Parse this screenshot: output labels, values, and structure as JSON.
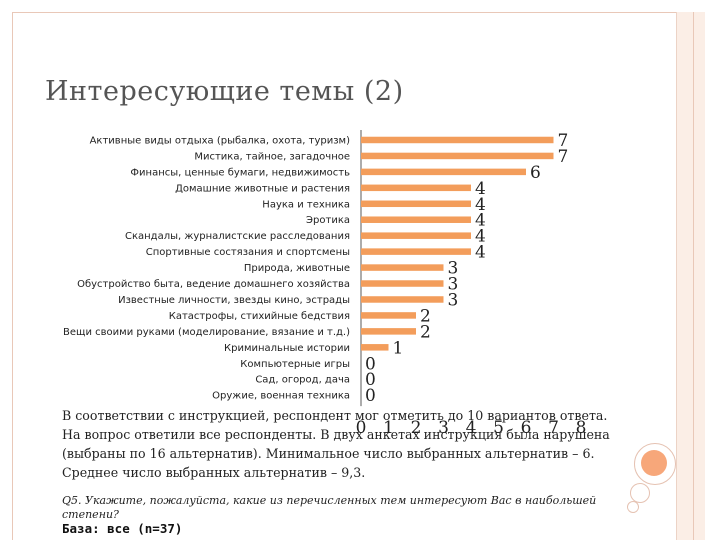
{
  "title": "Интересующие темы (2)",
  "chart_data": {
    "type": "bar",
    "orientation": "horizontal",
    "categories": [
      "Активные виды отдыха (рыбалка, охота, туризм)",
      "Мистика, тайное, загадочное",
      "Финансы, ценные бумаги, недвижимость",
      "Домашние животные и растения",
      "Наука и техника",
      "Эротика",
      "Скандалы, журналистские расследования",
      "Спортивные состязания и спортсмены",
      "Природа, животные",
      "Обустройство быта, ведение домашнего хозяйства",
      "Известные личности, звезды кино, эстрады",
      "Катастрофы, стихийные бедствия",
      "Вещи своими руками (моделирование, вязание и т.д.)",
      "Криминальные истории",
      "Компьютерные игры",
      "Сад, огород, дача",
      "Оружие, военная техника"
    ],
    "values": [
      7,
      7,
      6,
      4,
      4,
      4,
      4,
      4,
      3,
      3,
      3,
      2,
      2,
      1,
      0,
      0,
      0
    ],
    "xlim": [
      0,
      8
    ],
    "xticks": [
      "0",
      "1",
      "2",
      "3",
      "4",
      "5",
      "6",
      "7",
      "8"
    ],
    "data_labels": true,
    "grid": false,
    "bar_color": "#f39d5b"
  },
  "body_lines": [
    "В соответствии с инструкцией, респондент мог отметить до 10 вариантов ответа.",
    "На вопрос ответили все респонденты. В двух анкетах инструкция была нарушена",
    "(выбраны по 16 альтернатив). Минимальное число выбранных альтернатив – 6.",
    "Среднее число выбранных альтернатив – 9,3."
  ],
  "question": "Q5. Укажите, пожалуйста, какие из перечисленных тем интересуют Вас в наибольшей степени?",
  "base": "База: все (n=37)"
}
